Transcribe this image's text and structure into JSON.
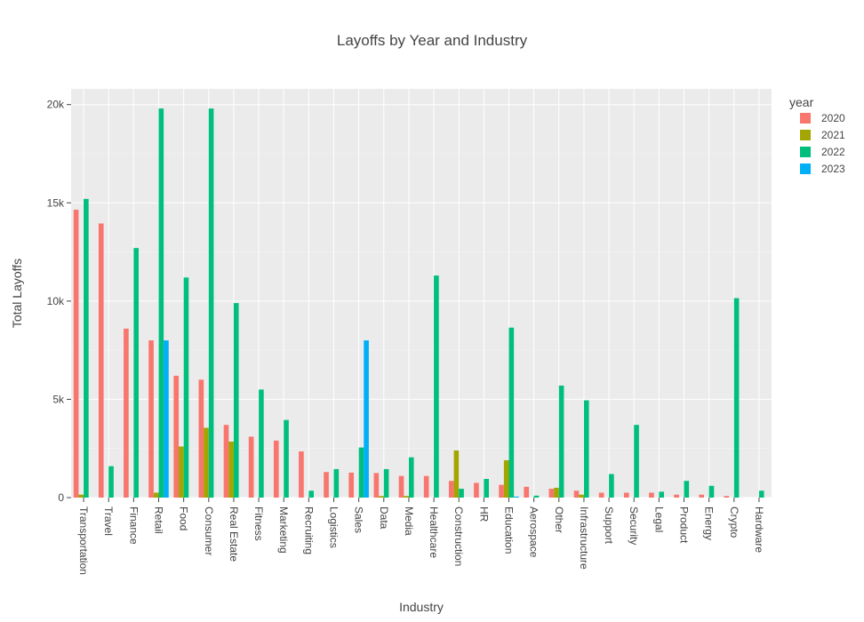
{
  "chart_data": {
    "type": "bar",
    "title": "Layoffs by Year and Industry",
    "xlabel": "Industry",
    "ylabel": "Total Layoffs",
    "ylim": [
      0,
      20800
    ],
    "yticks": [
      0,
      5000,
      10000,
      15000,
      20000
    ],
    "ytick_labels": [
      "0",
      "5k",
      "10k",
      "15k",
      "20k"
    ],
    "grid": true,
    "legend_title": "year",
    "legend_position": "top-right",
    "categories": [
      "Transportation",
      "Travel",
      "Finance",
      "Retail",
      "Food",
      "Consumer",
      "Real Estate",
      "Fitness",
      "Marketing",
      "Recruiting",
      "Logistics",
      "Sales",
      "Data",
      "Media",
      "Healthcare",
      "Construction",
      "HR",
      "Education",
      "Aerospace",
      "Other",
      "Infrastructure",
      "Support",
      "Security",
      "Legal",
      "Product",
      "Energy",
      "Crypto",
      "Hardware"
    ],
    "series": [
      {
        "name": "2020",
        "color": "#F8766D",
        "values": [
          14650,
          13950,
          8600,
          8000,
          6200,
          6000,
          3700,
          3100,
          2900,
          2350,
          1300,
          1270,
          1250,
          1100,
          1100,
          850,
          750,
          650,
          550,
          450,
          350,
          250,
          250,
          250,
          150,
          150,
          80,
          0
        ]
      },
      {
        "name": "2021",
        "color": "#A3A500",
        "values": [
          150,
          0,
          0,
          250,
          2600,
          3550,
          2850,
          0,
          0,
          0,
          0,
          0,
          80,
          80,
          0,
          2400,
          0,
          1900,
          0,
          500,
          150,
          0,
          0,
          0,
          0,
          0,
          0,
          0
        ]
      },
      {
        "name": "2022",
        "color": "#00BF7D",
        "values": [
          15200,
          1600,
          12700,
          19800,
          11200,
          19800,
          9900,
          5500,
          3950,
          350,
          1450,
          2550,
          1450,
          2050,
          11300,
          450,
          950,
          8650,
          100,
          5700,
          4950,
          1200,
          3700,
          300,
          850,
          600,
          10150,
          350
        ]
      },
      {
        "name": "2023",
        "color": "#00B0F6",
        "values": [
          0,
          0,
          0,
          8000,
          0,
          0,
          0,
          0,
          0,
          0,
          0,
          8000,
          0,
          0,
          0,
          0,
          0,
          50,
          0,
          0,
          0,
          0,
          0,
          0,
          0,
          0,
          0,
          0
        ]
      }
    ]
  }
}
